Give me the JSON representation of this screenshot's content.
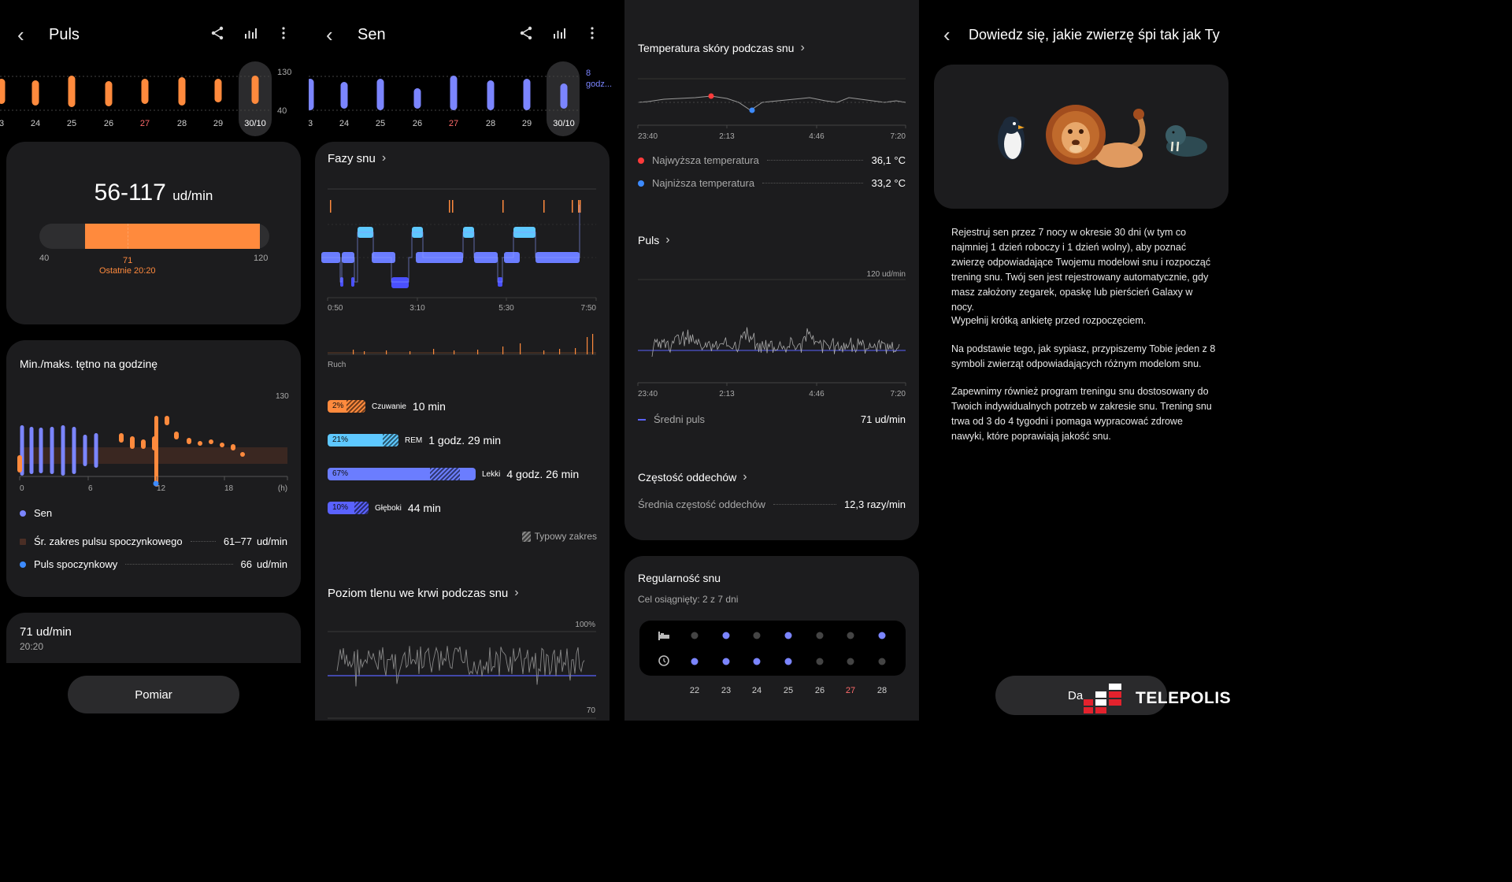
{
  "puls": {
    "title": "Puls",
    "dates": [
      "3",
      "24",
      "25",
      "26",
      "27",
      "28",
      "29",
      "30/10"
    ],
    "date_colors": [
      "#cfcfcf",
      "#cfcfcf",
      "#cfcfcf",
      "#cfcfcf",
      "#ff6b6b",
      "#cfcfcf",
      "#cfcfcf",
      "#ffffff"
    ],
    "axis_top": "130",
    "axis_bottom": "40",
    "range_value": "56-117",
    "range_unit": "ud/min",
    "scale_min": "40",
    "scale_max": "120",
    "current_value": "71",
    "last_label": "Ostatnie 20:20",
    "hourly_title": "Min./maks. tętno na godzinę",
    "hourly_axis_max": "130",
    "hourly_x_ticks": [
      "0",
      "6",
      "12",
      "18",
      "(h)"
    ],
    "legend_sleep": "Sen",
    "legend_range": "Śr. zakres pulsu spoczynkowego",
    "legend_range_value": "61–77",
    "legend_range_unit": "ud/min",
    "legend_resting": "Puls spoczynkowy",
    "legend_resting_value": "66",
    "legend_resting_unit": "ud/min",
    "last_value": "71 ud/min",
    "last_time": "20:20",
    "measure_button": "Pomiar"
  },
  "sleep": {
    "title": "Sen",
    "dates": [
      "3",
      "24",
      "25",
      "26",
      "27",
      "28",
      "29",
      "30/10"
    ],
    "date_colors": [
      "#cfcfcf",
      "#cfcfcf",
      "#cfcfcf",
      "#cfcfcf",
      "#ff6b6b",
      "#cfcfcf",
      "#cfcfcf",
      "#ffffff"
    ],
    "axis_label_1": "8",
    "axis_label_2": "godz...",
    "phases_title": "Fazy snu",
    "phase_times": [
      "0:50",
      "3:10",
      "5:30",
      "7:50"
    ],
    "movement_label": "Ruch",
    "stages": [
      {
        "pct": "2%",
        "label": "Czuwanie",
        "value": "10 min",
        "color": "#ff8a3d"
      },
      {
        "pct": "21%",
        "label": "REM",
        "value": "1 godz. 29 min",
        "color": "#5ec8ff"
      },
      {
        "pct": "67%",
        "label": "Lekki",
        "value": "4 godz. 26 min",
        "color": "#6b7dff"
      },
      {
        "pct": "10%",
        "label": "Głęboki",
        "value": "44 min",
        "color": "#5a62ff"
      }
    ],
    "typical_range": "Typowy zakres",
    "oxygen_title": "Poziom tlenu we krwi podczas snu",
    "oxygen_max": "100%",
    "oxygen_min": "70"
  },
  "details": {
    "skin_temp_title": "Temperatura skóry podczas snu",
    "temp_times": [
      "23:40",
      "2:13",
      "4:46",
      "7:20"
    ],
    "highest_temp_label": "Najwyższa temperatura",
    "highest_temp_value": "36,1 °C",
    "lowest_temp_label": "Najniższa temperatura",
    "lowest_temp_value": "33,2 °C",
    "pulse_title": "Puls",
    "pulse_max": "120 ud/min",
    "pulse_times": [
      "23:40",
      "2:13",
      "4:46",
      "7:20"
    ],
    "avg_pulse_label": "Średni puls",
    "avg_pulse_value": "71 ud/min",
    "breath_title": "Częstość oddechów",
    "avg_breath_label": "Średnia częstość oddechów",
    "avg_breath_value": "12,3 razy/min",
    "regularity_title": "Regularność snu",
    "goal_text": "Cel osiągnięty: 2 z 7 dni",
    "reg_days": [
      "22",
      "23",
      "24",
      "25",
      "26",
      "27",
      "28"
    ],
    "reg_day_colors": [
      "#cfcfcf",
      "#cfcfcf",
      "#cfcfcf",
      "#cfcfcf",
      "#cfcfcf",
      "#ff6b6b",
      "#cfcfcf"
    ],
    "bed_row": [
      false,
      true,
      false,
      true,
      false,
      false,
      true
    ],
    "wake_row": [
      true,
      true,
      true,
      true,
      false,
      false,
      false
    ]
  },
  "animal": {
    "title": "Dowiedz się, jakie zwierzę śpi tak jak Ty",
    "para1": "Rejestruj sen przez 7 nocy w okresie 30 dni (w tym co najmniej 1 dzień roboczy i 1 dzień wolny), aby poznać zwierzę odpowiadające Twojemu modelowi snu i rozpocząć trening snu. Twój sen jest rejestrowany automatycznie, gdy masz założony zegarek, opaskę lub pierścień Galaxy w nocy.",
    "para2": "Wypełnij krótką ankietę przed rozpoczęciem.",
    "para3": "Na podstawie tego, jak sypiasz, przypiszemy Tobie jeden z 8 symboli zwierząt odpowiadających różnym modelom snu.",
    "para4": "Zapewnimy również program treningu snu dostosowany do Twoich indywidualnych potrzeb w zakresie snu. Trening snu trwa od 3 do 4 tygodni i pomaga wypracować zdrowe nawyki, które poprawiają jakość snu.",
    "button": "Da",
    "watermark": "TELEPOLIS"
  },
  "colors": {
    "orange": "#ff8a3d",
    "blue_light": "#5ec8ff",
    "blue": "#6b7dff",
    "blue_deep": "#4a50ff",
    "red": "#ff4b4b",
    "card": "#1c1c1e"
  }
}
